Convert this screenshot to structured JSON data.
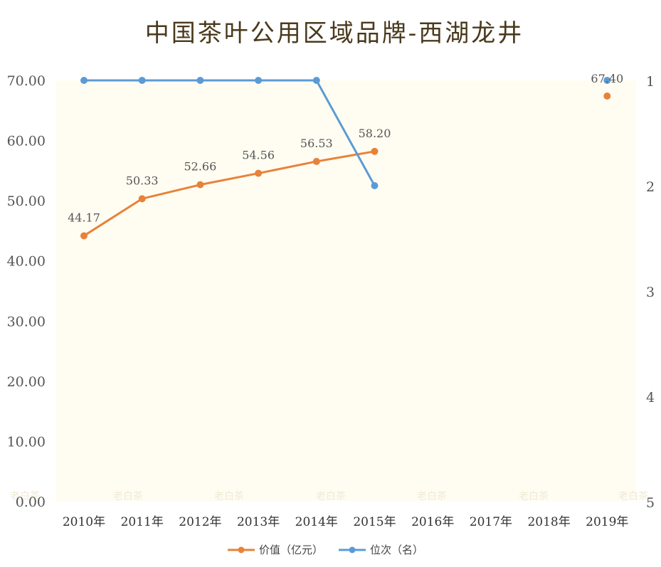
{
  "chart_data": {
    "type": "line",
    "title": "中国茶叶公用区域品牌-西湖龙井",
    "categories": [
      "2010年",
      "2011年",
      "2012年",
      "2013年",
      "2014年",
      "2015年",
      "2016年",
      "2017年",
      "2018年",
      "2019年"
    ],
    "y_left": {
      "ylim": [
        0,
        70
      ],
      "ticks": [
        "0.00",
        "10.00",
        "20.00",
        "30.00",
        "40.00",
        "50.00",
        "60.00",
        "70.00"
      ]
    },
    "y_right": {
      "ylim": [
        1,
        5
      ],
      "reversed": true,
      "ticks": [
        "1",
        "2",
        "3",
        "4",
        "5"
      ]
    },
    "series": [
      {
        "name": "价值（亿元）",
        "axis": "left",
        "color": "#e8823a",
        "values": [
          44.17,
          50.33,
          52.66,
          54.56,
          56.53,
          58.2,
          null,
          null,
          null,
          67.4
        ],
        "labels": [
          "44.17",
          "50.33",
          "52.66",
          "54.56",
          "56.53",
          "58.20",
          "",
          "",
          "",
          "67.40"
        ]
      },
      {
        "name": "位次（名）",
        "axis": "right",
        "color": "#5b9bd5",
        "values": [
          1,
          1,
          1,
          1,
          1,
          2,
          null,
          null,
          null,
          1
        ]
      }
    ],
    "legend_position": "bottom",
    "grid": false,
    "plot_background": "#fffdf2"
  },
  "watermark": "老白茶"
}
